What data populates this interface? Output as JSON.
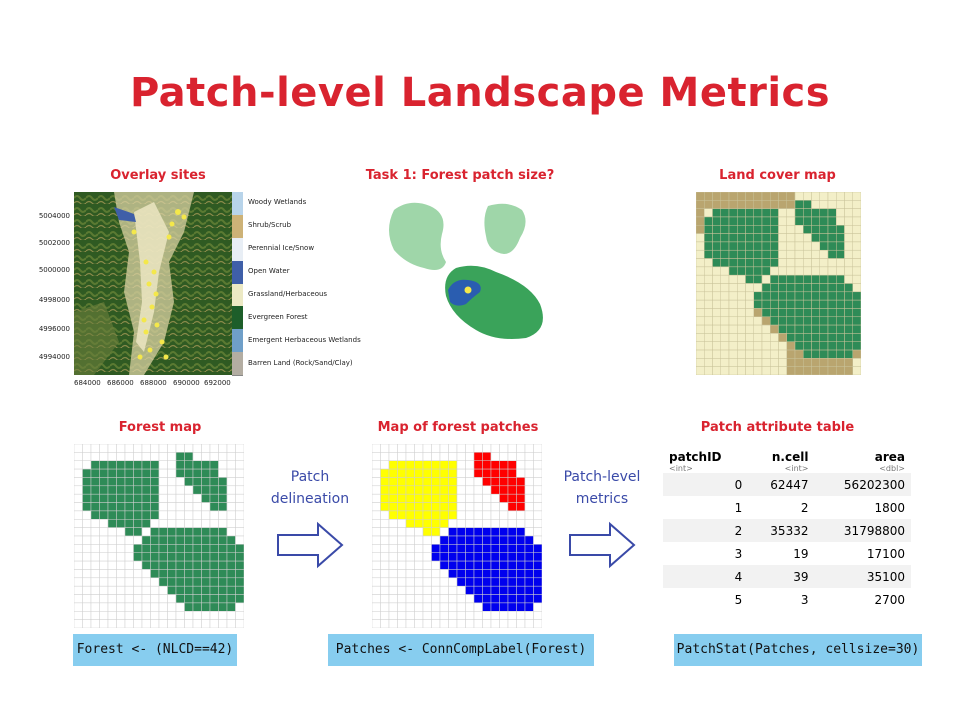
{
  "title": "Patch-level Landscape Metrics",
  "panels": {
    "overlay": "Overlay sites",
    "task": "Task 1: Forest patch size?",
    "landcover": "Land cover map",
    "forest": "Forest map",
    "patches": "Map of forest patches",
    "table": "Patch attribute table"
  },
  "legend": [
    {
      "label": "Woody Wetlands",
      "color": "#b8d4ea"
    },
    {
      "label": "Shrub/Scrub",
      "color": "#cdb277"
    },
    {
      "label": "Perennial Ice/Snow",
      "color": "#e8eef5"
    },
    {
      "label": "Open Water",
      "color": "#3f5fa8"
    },
    {
      "label": "Grassland/Herbaceous",
      "color": "#ece9c4"
    },
    {
      "label": "Evergreen Forest",
      "color": "#1d5e2a"
    },
    {
      "label": "Emergent Herbaceous Wetlands",
      "color": "#6f9fc8"
    },
    {
      "label": "Barren Land (Rock/Sand/Clay)",
      "color": "#b3ada2"
    }
  ],
  "y_ticks": [
    "5004000",
    "5002000",
    "5000000",
    "4998000",
    "4996000",
    "4994000"
  ],
  "x_ticks": [
    "684000",
    "686000",
    "688000",
    "690000",
    "692000"
  ],
  "arrows": {
    "first": [
      "Patch",
      "delineation"
    ],
    "second": [
      "Patch-level",
      "metrics"
    ]
  },
  "code": {
    "forest": "Forest <- (NLCD==42)",
    "patches": "Patches <- ConnCompLabel(Forest)",
    "stat": "PatchStat(Patches, cellsize=30)"
  },
  "table": {
    "headers": [
      {
        "name": "patchID",
        "type": "<int>"
      },
      {
        "name": "n.cell",
        "type": "<int>"
      },
      {
        "name": "area",
        "type": "<dbl>"
      }
    ],
    "rows": [
      [
        "0",
        "62447",
        "56202300"
      ],
      [
        "1",
        "2",
        "1800"
      ],
      [
        "2",
        "35332",
        "31798800"
      ],
      [
        "3",
        "19",
        "17100"
      ],
      [
        "4",
        "39",
        "35100"
      ],
      [
        "5",
        "3",
        "2700"
      ]
    ]
  },
  "colors": {
    "title": "#d9232f",
    "forest": "#2e8b57",
    "grass": "#f3efc8",
    "shrub": "#b9a56f",
    "patch_yellow": "#ffff00",
    "patch_red": "#ff0000",
    "patch_blue": "#0000ee",
    "code_bg": "#87cdef"
  }
}
